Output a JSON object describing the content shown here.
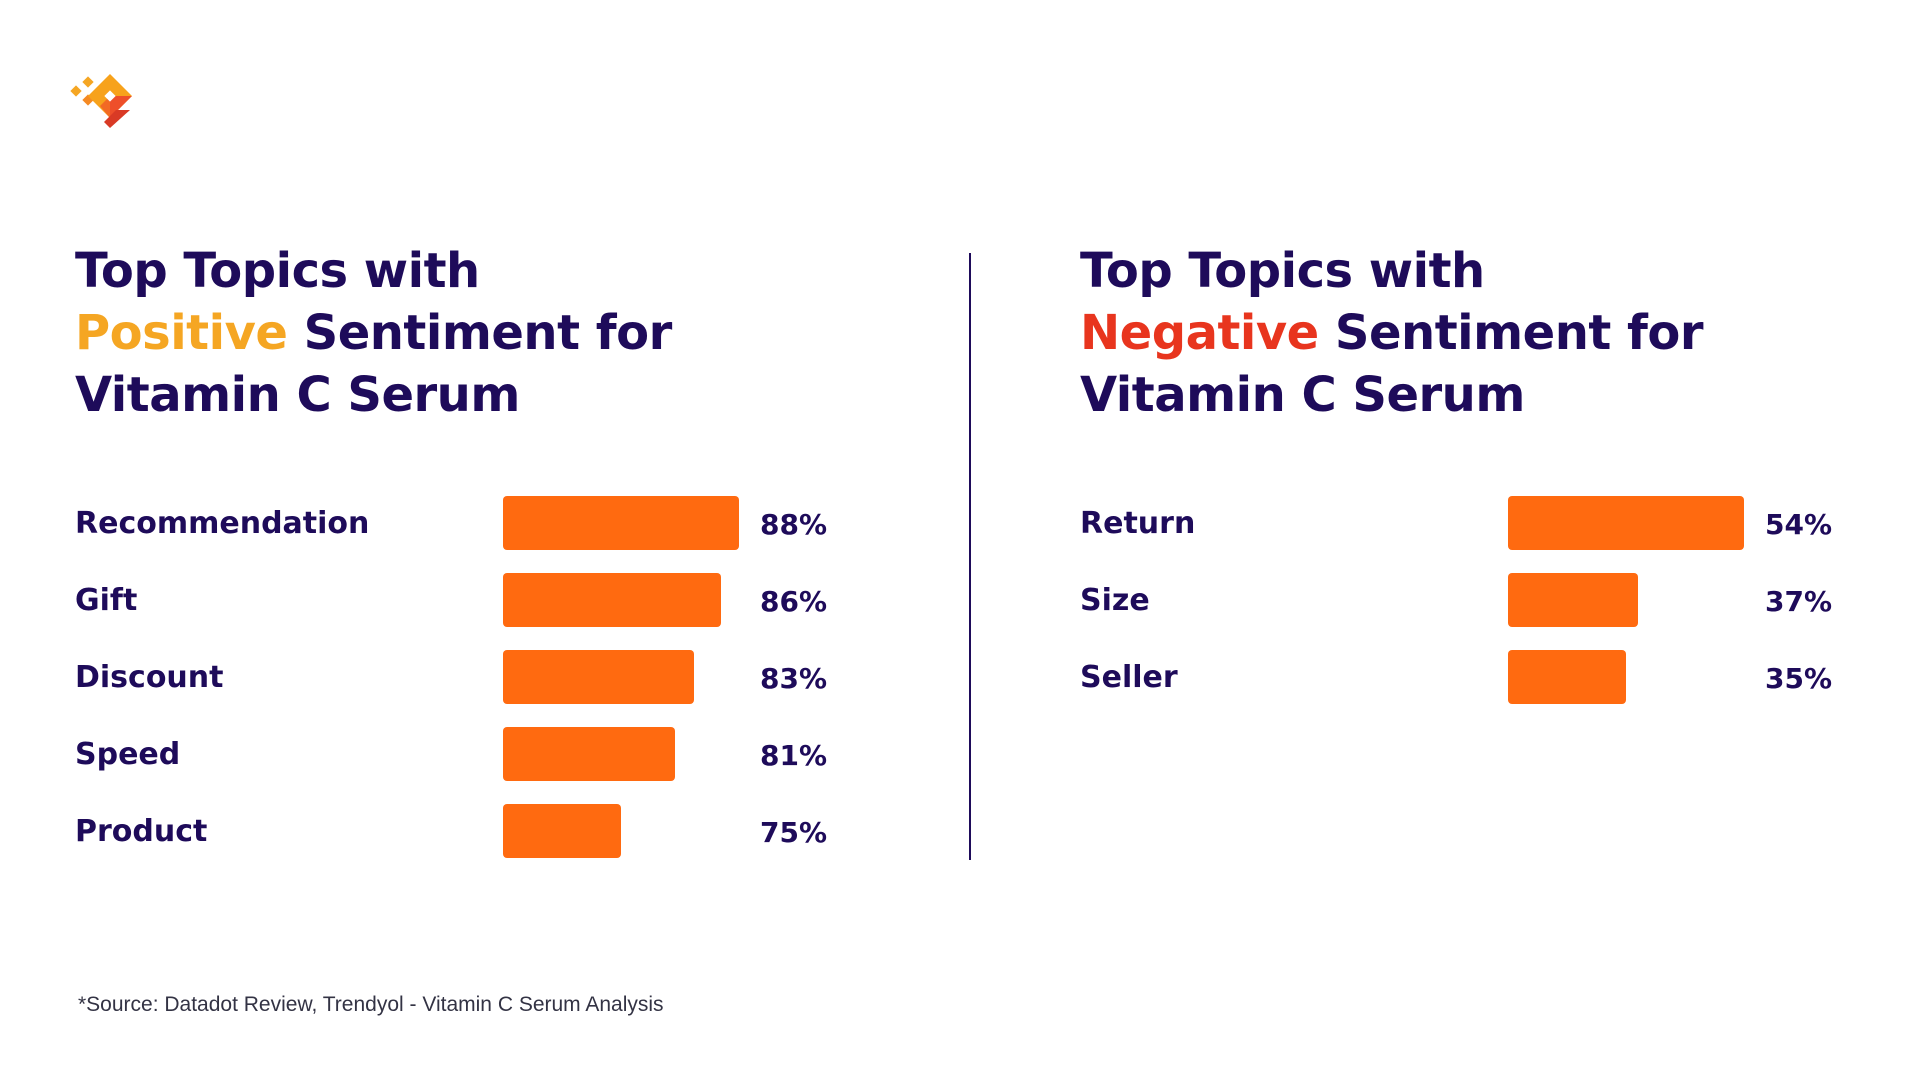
{
  "colors": {
    "title": "#1e0b5a",
    "positive_accent": "#f5a623",
    "negative_accent": "#e8351e",
    "bar": "#ff6a10"
  },
  "logo": {
    "icon": "orange-diamond-logo-icon"
  },
  "left": {
    "title_line1": "Top Topics with",
    "title_accent": "Positive",
    "title_line2_rest": " Sentiment for",
    "title_line3": "Vitamin C Serum"
  },
  "right": {
    "title_line1": "Top Topics with",
    "title_accent": "Negative",
    "title_line2_rest": " Sentiment for",
    "title_line3": "Vitamin C Serum"
  },
  "chart_data": [
    {
      "type": "bar",
      "orientation": "horizontal",
      "title": "Top Topics with Positive Sentiment for Vitamin C Serum",
      "categories": [
        "Recommendation",
        "Gift",
        "Discount",
        "Speed",
        "Product"
      ],
      "values": [
        88,
        86,
        83,
        81,
        75
      ],
      "value_labels": [
        "88%",
        "86%",
        "83%",
        "81%",
        "75%"
      ],
      "grid": false
    },
    {
      "type": "bar",
      "orientation": "horizontal",
      "title": "Top Topics with Negative Sentiment for Vitamin C Serum",
      "categories": [
        "Return",
        "Size",
        "Seller"
      ],
      "values": [
        54,
        37,
        35
      ],
      "value_labels": [
        "54%",
        "37%",
        "35%"
      ],
      "grid": false
    }
  ],
  "footer": {
    "source": "*Source: Datadot Review,  Trendyol - Vitamin C Serum Analysis"
  }
}
